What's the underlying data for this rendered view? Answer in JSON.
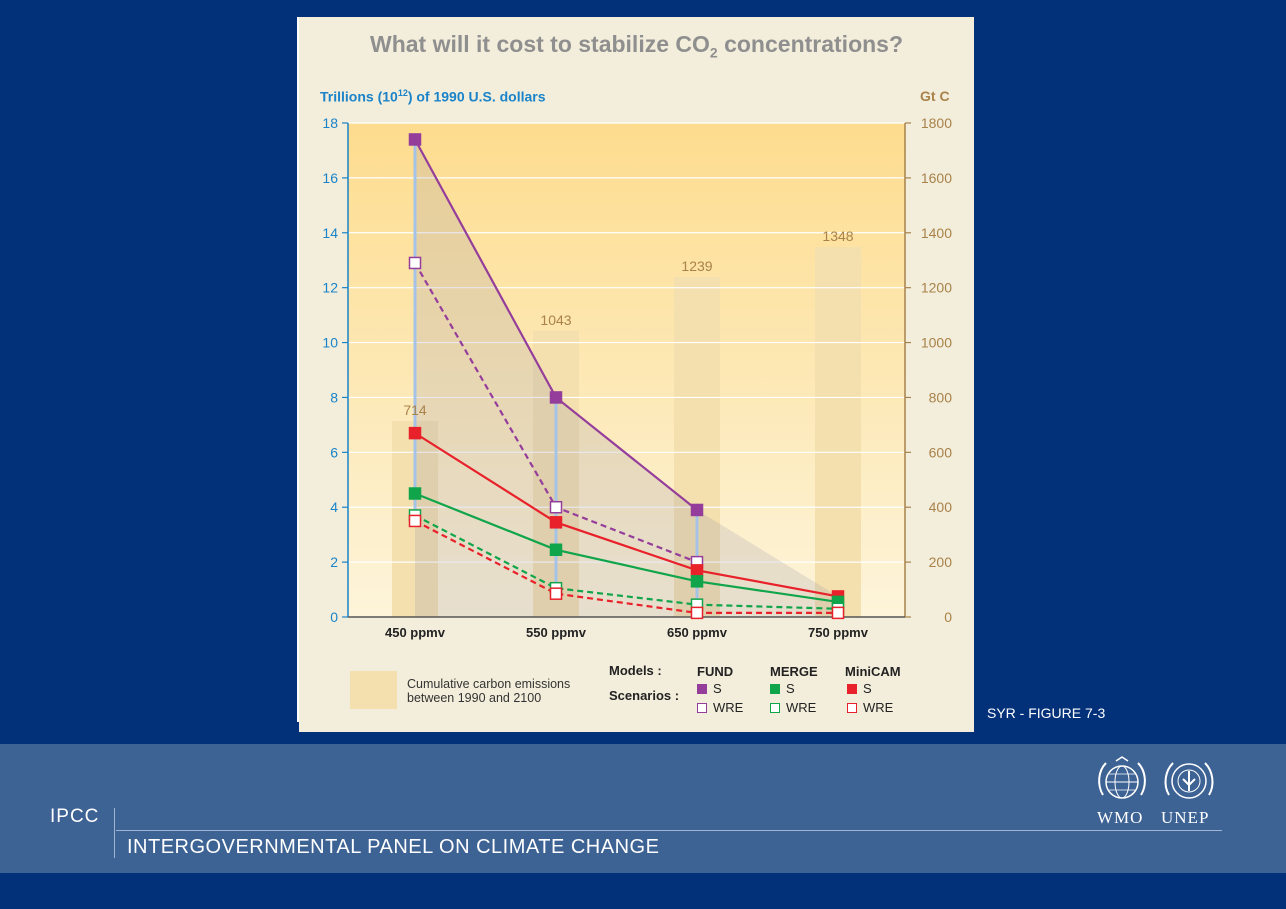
{
  "figure": {
    "title_main": "What will it cost to stabilize CO",
    "title_sub": "2",
    "title_tail": " concentrations?",
    "ylabel_left_pre": "Trillions (10",
    "ylabel_left_sup": "12",
    "ylabel_left_post": ") of 1990 U.S. dollars",
    "ylabel_right": "Gt C",
    "reference": "SYR - FIGURE 7-3"
  },
  "legend": {
    "emissions_line1": "Cumulative carbon emissions",
    "emissions_line2": "between 1990 and 2100",
    "models_label": "Models :",
    "scenarios_label": "Scenarios :",
    "models": [
      {
        "name": "FUND",
        "color": "#953d9b",
        "s": "S",
        "wre": "WRE"
      },
      {
        "name": "MERGE",
        "color": "#10a54a",
        "s": "S",
        "wre": "WRE"
      },
      {
        "name": "MiniCAM",
        "color": "#e8212a",
        "s": "S",
        "wre": "WRE"
      }
    ]
  },
  "chart_data": {
    "type": "line",
    "categories": [
      "450 ppmv",
      "550 ppmv",
      "650 ppmv",
      "750 ppmv"
    ],
    "ylim": [
      0,
      18
    ],
    "yticks": [
      0,
      2,
      4,
      6,
      8,
      10,
      12,
      14,
      16,
      18
    ],
    "ylim_right": [
      0,
      1800
    ],
    "yticks_right": [
      0,
      200,
      400,
      600,
      800,
      1000,
      1200,
      1400,
      1600,
      1800
    ],
    "emissions_bars": {
      "axis": "right",
      "values": [
        714,
        1043,
        1239,
        1348
      ],
      "labels": [
        "714",
        "1043",
        "1239",
        "1348"
      ],
      "color": "#f4dfae",
      "label_color": "#a8824a"
    },
    "series": [
      {
        "model": "FUND",
        "scenario": "S",
        "color": "#953d9b",
        "style": "solid",
        "marker": "filled",
        "values": [
          17.4,
          8.0,
          3.9,
          null
        ]
      },
      {
        "model": "FUND",
        "scenario": "WRE",
        "color": "#953d9b",
        "style": "dashed",
        "marker": "open",
        "values": [
          12.9,
          4.0,
          2.0,
          null
        ]
      },
      {
        "model": "MiniCAM",
        "scenario": "S",
        "color": "#e8212a",
        "style": "solid",
        "marker": "filled",
        "values": [
          6.7,
          3.45,
          1.7,
          0.75
        ]
      },
      {
        "model": "MERGE",
        "scenario": "S",
        "color": "#10a54a",
        "style": "solid",
        "marker": "filled",
        "values": [
          4.5,
          2.45,
          1.3,
          0.55
        ]
      },
      {
        "model": "MERGE",
        "scenario": "WRE",
        "color": "#10a54a",
        "style": "dashed",
        "marker": "open",
        "values": [
          3.7,
          1.05,
          0.45,
          0.3
        ]
      },
      {
        "model": "MiniCAM",
        "scenario": "WRE",
        "color": "#e8212a",
        "style": "dashed",
        "marker": "open",
        "values": [
          3.5,
          0.85,
          0.15,
          0.15
        ]
      }
    ],
    "range_lines_color": "#a5c3e6",
    "grid": true
  },
  "footer": {
    "ipcc": "IPCC",
    "org_name": "INTERGOVERNMENTAL PANEL ON CLIMATE CHANGE",
    "wmo": "WMO",
    "unep": "UNEP"
  }
}
